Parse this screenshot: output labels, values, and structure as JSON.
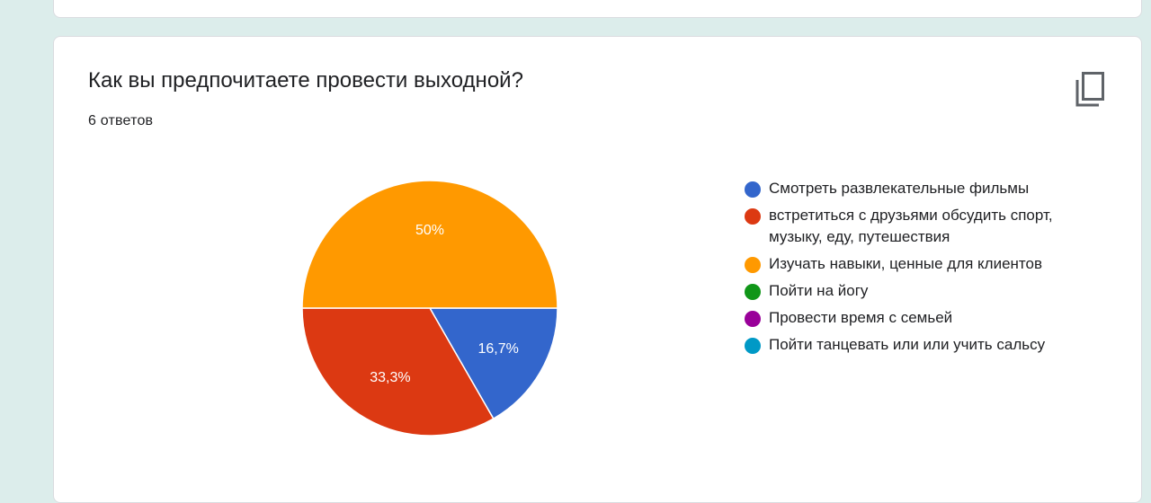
{
  "question": {
    "title": "Как вы предпочитаете провести выходной?",
    "responses_label": "6 ответов"
  },
  "icons": {
    "copy": "copy-icon"
  },
  "chart_data": {
    "type": "pie",
    "title": "",
    "total_responses": 6,
    "slices": [
      {
        "name": "Смотреть развлекательные фильмы",
        "value": 16.7,
        "label": "16,7%",
        "color": "#3366cc"
      },
      {
        "name": "встретиться с друзьями обсудить спорт, музыку, еду, путешествия",
        "value": 33.3,
        "label": "33,3%",
        "color": "#dc3912"
      },
      {
        "name": "Изучать навыки, ценные для клиентов",
        "value": 50,
        "label": "50%",
        "color": "#ff9900"
      },
      {
        "name": "Пойти на йогу",
        "value": 0,
        "label": "",
        "color": "#109618"
      },
      {
        "name": "Провести время с семьей",
        "value": 0,
        "label": "",
        "color": "#990099"
      },
      {
        "name": "Пойти танцевать или или учить сальсу",
        "value": 0,
        "label": "",
        "color": "#0099c6"
      }
    ],
    "legend_position": "right"
  }
}
